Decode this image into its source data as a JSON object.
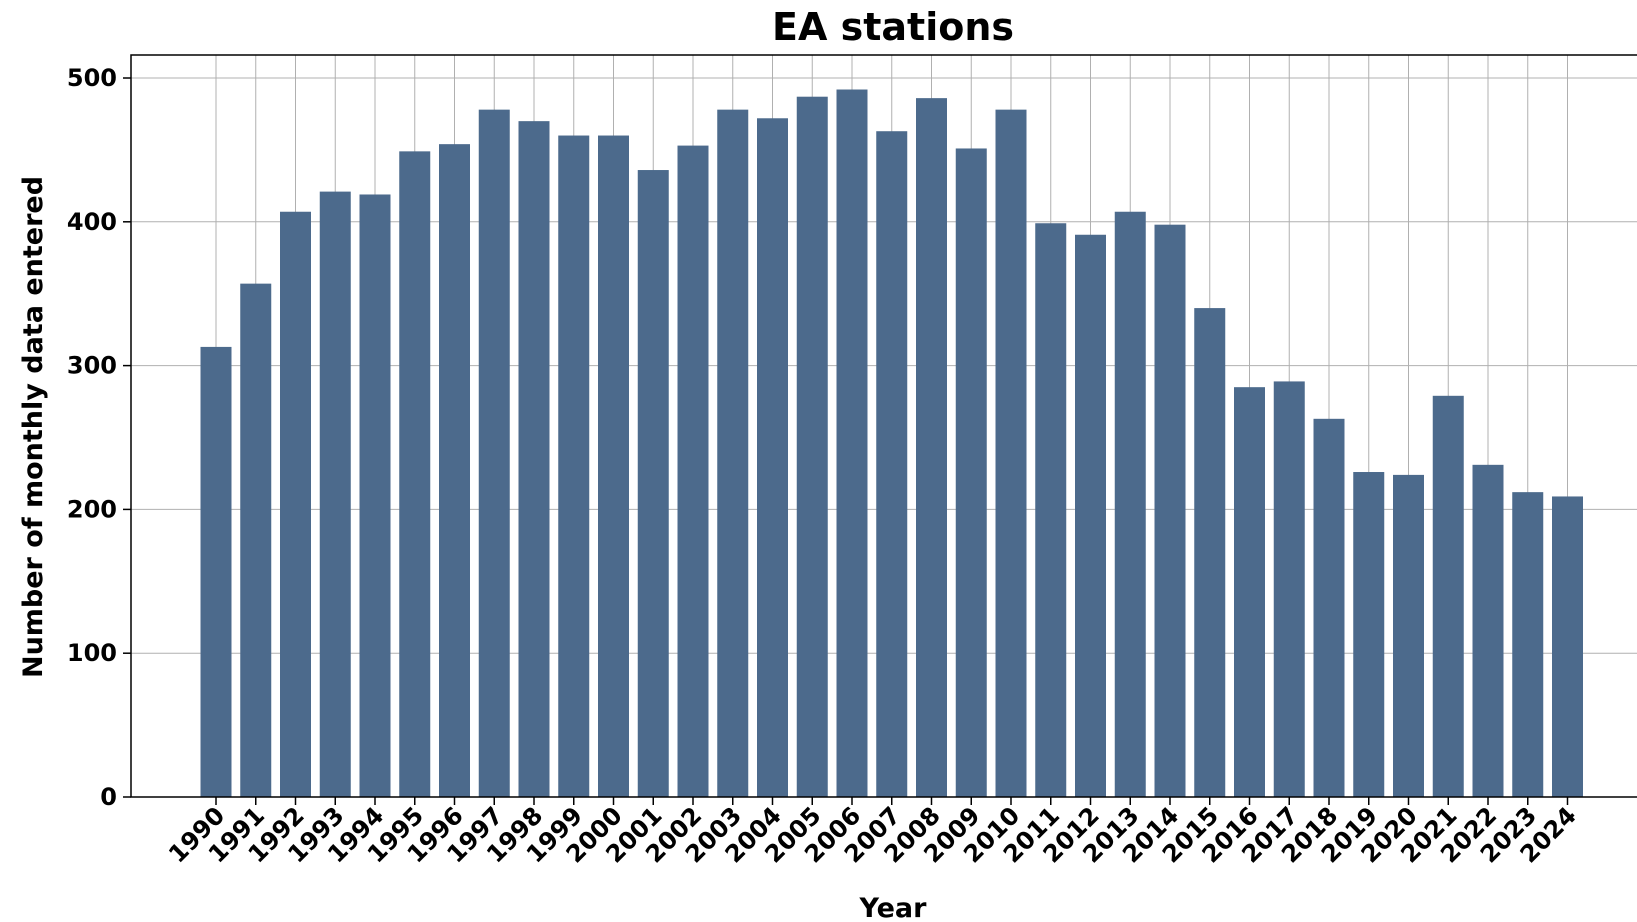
{
  "chart_data": {
    "type": "bar",
    "title": "EA stations",
    "xlabel": "Year",
    "ylabel": "Number of monthly data entered",
    "ylim": [
      0,
      516
    ],
    "yticks": [
      0,
      100,
      200,
      300,
      400,
      500
    ],
    "grid": true,
    "bar_color": "#4c6a8c",
    "categories": [
      "1990",
      "1991",
      "1992",
      "1993",
      "1994",
      "1995",
      "1996",
      "1997",
      "1998",
      "1999",
      "2000",
      "2001",
      "2002",
      "2003",
      "2004",
      "2005",
      "2006",
      "2007",
      "2008",
      "2009",
      "2010",
      "2011",
      "2012",
      "2013",
      "2014",
      "2015",
      "2016",
      "2017",
      "2018",
      "2019",
      "2020",
      "2021",
      "2022",
      "2023",
      "2024"
    ],
    "values": [
      313,
      357,
      407,
      421,
      419,
      449,
      454,
      478,
      470,
      460,
      460,
      436,
      453,
      478,
      472,
      487,
      492,
      463,
      486,
      451,
      478,
      399,
      391,
      407,
      398,
      340,
      285,
      289,
      263,
      226,
      224,
      279,
      231,
      212,
      209
    ]
  }
}
